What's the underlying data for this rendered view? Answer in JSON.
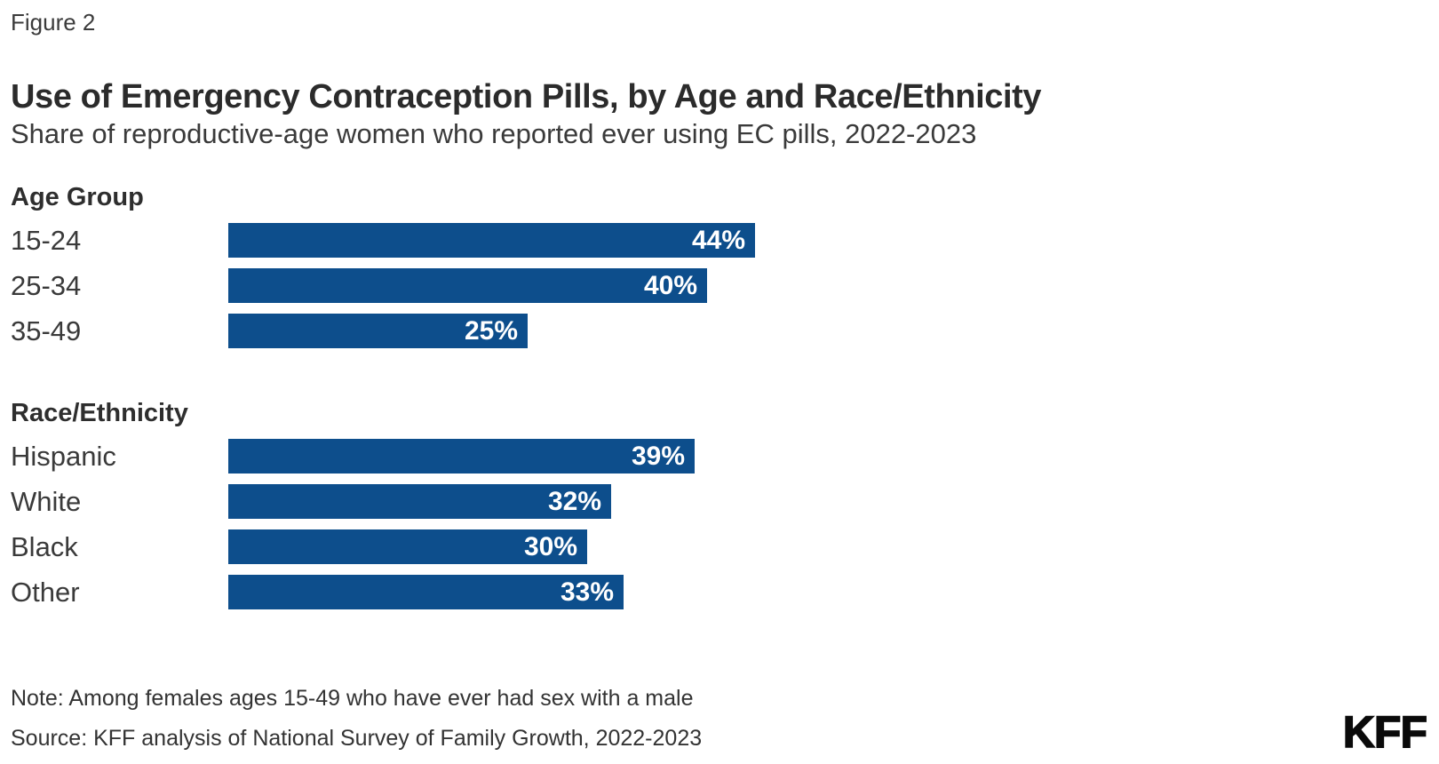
{
  "header": {
    "figure_label": "Figure 2",
    "title": "Use of Emergency Contraception Pills, by Age and Race/Ethnicity",
    "subtitle": "Share of reproductive-age women who reported ever using EC pills, 2022-2023"
  },
  "footer": {
    "note": "Note: Among females ages 15-49 who have ever had sex with a male",
    "source": "Source: KFF analysis of National Survey of Family Growth, 2022-2023",
    "logo_text": "KFF"
  },
  "colors": {
    "bar": "#0d4e8c",
    "value_label": "#ffffff",
    "text": "#333333",
    "title": "#2b2b2b",
    "logo": "#0a0a0a"
  },
  "chart_data": {
    "type": "bar",
    "orientation": "horizontal",
    "unit": "%",
    "title": "Use of Emergency Contraception Pills, by Age and Race/Ethnicity",
    "subtitle": "Share of reproductive-age women who reported ever using EC pills, 2022-2023",
    "xlim": [
      0,
      47
    ],
    "axes_visible": false,
    "grid": false,
    "legend": false,
    "value_labels_inside_bars": true,
    "groups": [
      {
        "label": "Age Group",
        "categories": [
          "15-24",
          "25-34",
          "35-49"
        ],
        "values": [
          44,
          40,
          25
        ]
      },
      {
        "label": "Race/Ethnicity",
        "categories": [
          "Hispanic",
          "White",
          "Black",
          "Other"
        ],
        "values": [
          39,
          32,
          30,
          33
        ]
      }
    ]
  }
}
